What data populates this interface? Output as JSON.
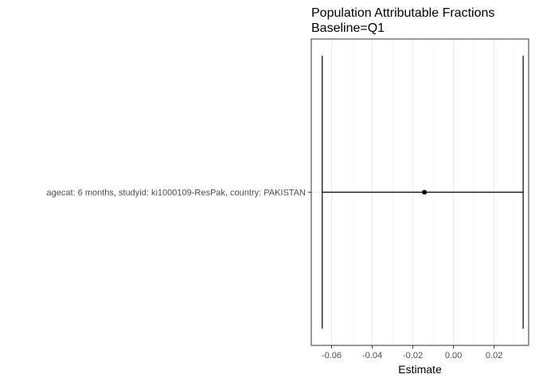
{
  "chart_data": {
    "type": "forest",
    "title": [
      "Population Attributable Fractions",
      "Baseline=Q1"
    ],
    "xlabel": "Estimate",
    "ylabel": "",
    "xlim": [
      -0.07,
      0.037
    ],
    "x_ticks": [
      -0.06,
      -0.04,
      -0.02,
      0.0,
      0.02
    ],
    "x_tick_labels": [
      "-0.06",
      "-0.04",
      "-0.02",
      "0.00",
      "0.02"
    ],
    "grid": true,
    "series": [
      {
        "label": "agecat: 6 months, studyid: ki1000109-ResPak, country: PAKISTAN",
        "estimate": -0.0143,
        "ci_lower": -0.0646,
        "ci_upper": 0.0343
      }
    ]
  }
}
